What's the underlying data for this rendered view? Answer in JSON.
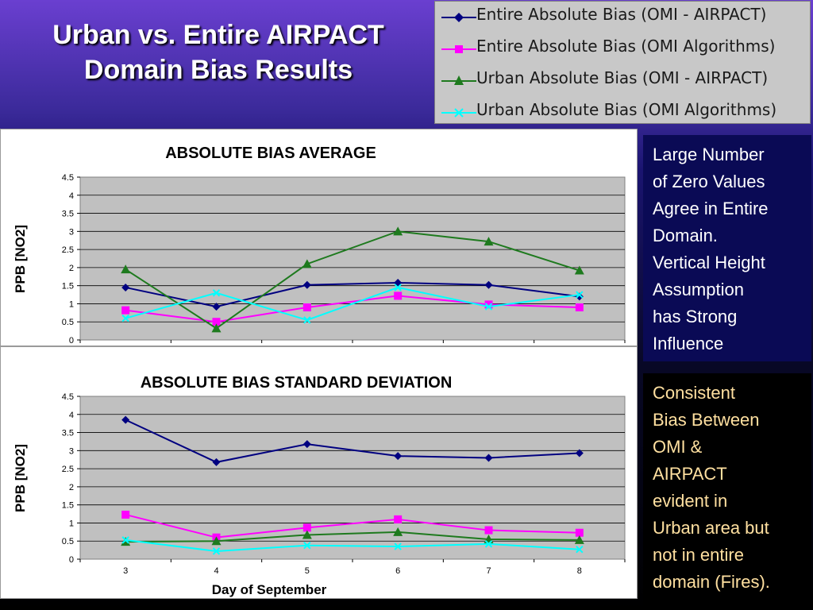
{
  "slide": {
    "title_lines": [
      "Urban vs. Entire AIRPACT",
      "Domain Bias Results"
    ]
  },
  "legend": {
    "items": [
      {
        "label": "Entire Absolute Bias (OMI - AIRPACT)",
        "color": "#000080",
        "marker": "diamond"
      },
      {
        "label": "Entire Absolute Bias (OMI Algorithms)",
        "color": "#ff00ff",
        "marker": "square"
      },
      {
        "label": "Urban Absolute Bias (OMI - AIRPACT)",
        "color": "#1e7a1e",
        "marker": "triangle"
      },
      {
        "label": "Urban Absolute Bias (OMI Algorithms)",
        "color": "#00ffff",
        "marker": "x"
      }
    ]
  },
  "notes": {
    "note1_lines": [
      "Large Number",
      "of Zero Values",
      "Agree in Entire",
      "Domain.",
      "Vertical Height",
      "Assumption",
      "has Strong",
      "Influence"
    ],
    "note2_lines": [
      "Consistent",
      "Bias Between",
      "OMI &",
      "AIRPACT",
      "evident in",
      "Urban area but",
      "not in entire",
      "domain (Fires)."
    ]
  },
  "chart_data": [
    {
      "type": "line",
      "title": "ABSOLUTE BIAS AVERAGE",
      "xlabel": "",
      "ylabel": "PPB [NO2]",
      "x": [
        3,
        4,
        5,
        6,
        7,
        8
      ],
      "ylim": [
        0,
        4.5
      ],
      "yticks": [
        "0",
        "0.5",
        "1",
        "1.5",
        "2",
        "2.5",
        "3",
        "3.5",
        "4",
        "4.5"
      ],
      "grid": true,
      "series": [
        {
          "name": "Entire Absolute Bias (OMI - AIRPACT)",
          "values": [
            1.45,
            0.92,
            1.52,
            1.58,
            1.52,
            1.2
          ],
          "color": "#000080",
          "marker": "diamond"
        },
        {
          "name": "Entire Absolute Bias (OMI Algorithms)",
          "values": [
            0.82,
            0.5,
            0.9,
            1.22,
            0.98,
            0.9
          ],
          "color": "#ff00ff",
          "marker": "square"
        },
        {
          "name": "Urban Absolute Bias (OMI - AIRPACT)",
          "values": [
            1.95,
            0.32,
            2.1,
            3.0,
            2.72,
            1.92
          ],
          "color": "#1e7a1e",
          "marker": "triangle"
        },
        {
          "name": "Urban Absolute Bias (OMI Algorithms)",
          "values": [
            0.6,
            1.3,
            0.55,
            1.45,
            0.92,
            1.25
          ],
          "color": "#00ffff",
          "marker": "x"
        }
      ]
    },
    {
      "type": "line",
      "title": "ABSOLUTE BIAS STANDARD DEVIATION",
      "xlabel": "Day of September",
      "ylabel": "PPB [NO2]",
      "x": [
        3,
        4,
        5,
        6,
        7,
        8
      ],
      "xticks": [
        "3",
        "4",
        "5",
        "6",
        "7",
        "8"
      ],
      "ylim": [
        0,
        4.5
      ],
      "yticks": [
        "0",
        "0.5",
        "1",
        "1.5",
        "2",
        "2.5",
        "3",
        "3.5",
        "4",
        "4.5"
      ],
      "grid": true,
      "series": [
        {
          "name": "Entire Absolute Bias (OMI - AIRPACT)",
          "values": [
            3.85,
            2.68,
            3.18,
            2.85,
            2.8,
            2.93
          ],
          "color": "#000080",
          "marker": "diamond"
        },
        {
          "name": "Entire Absolute Bias (OMI Algorithms)",
          "values": [
            1.23,
            0.6,
            0.87,
            1.1,
            0.8,
            0.73
          ],
          "color": "#ff00ff",
          "marker": "square"
        },
        {
          "name": "Urban Absolute Bias (OMI - AIRPACT)",
          "values": [
            0.48,
            0.5,
            0.67,
            0.75,
            0.55,
            0.53
          ],
          "color": "#1e7a1e",
          "marker": "triangle"
        },
        {
          "name": "Urban Absolute Bias (OMI Algorithms)",
          "values": [
            0.53,
            0.22,
            0.38,
            0.35,
            0.42,
            0.27
          ],
          "color": "#00ffff",
          "marker": "x"
        }
      ]
    }
  ]
}
